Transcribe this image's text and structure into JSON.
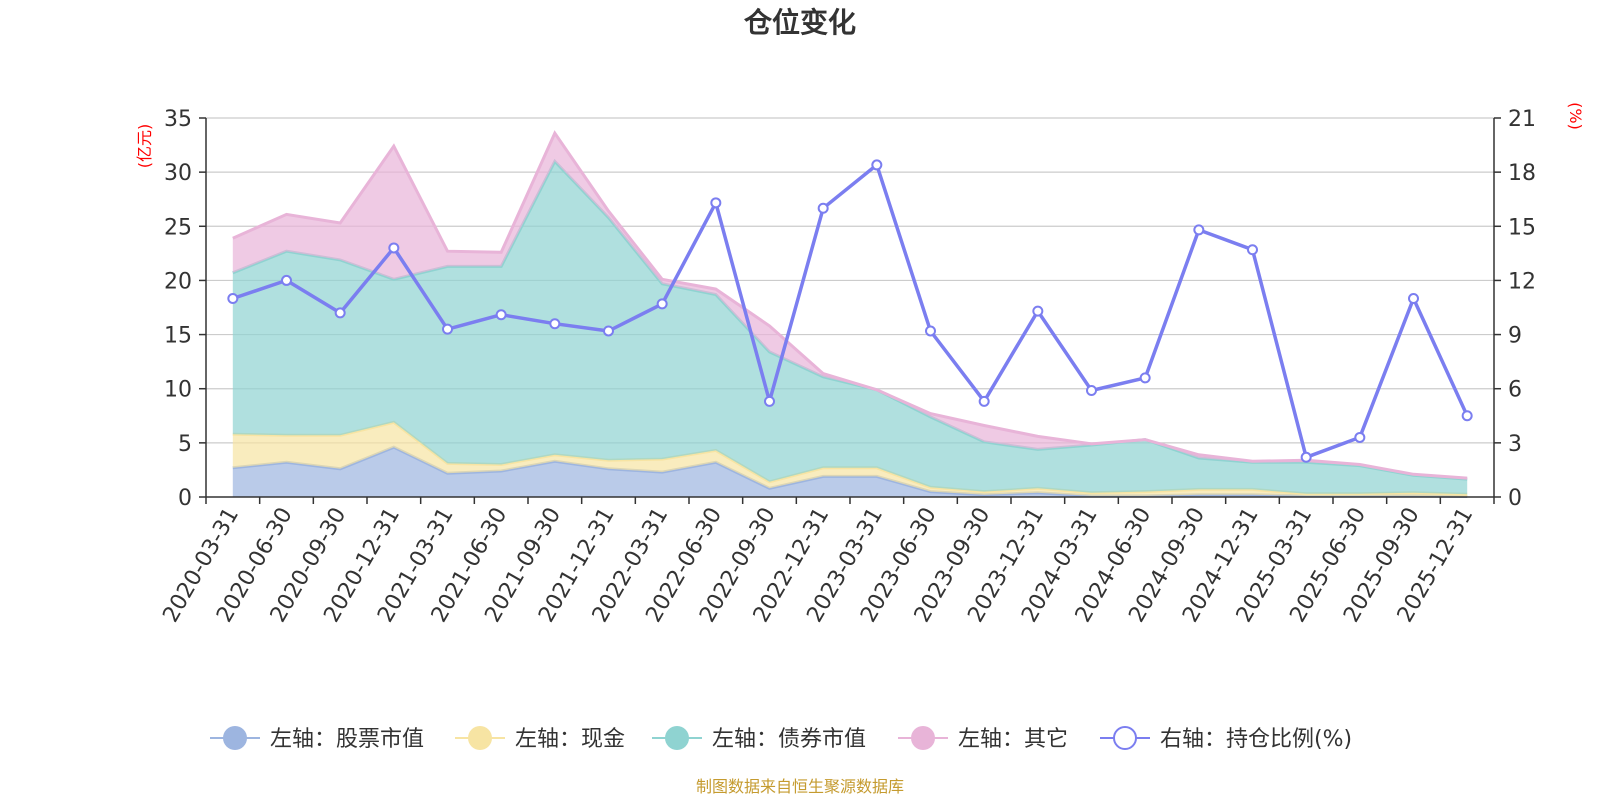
{
  "chart_data": {
    "type": "area",
    "title": "仓位变化",
    "left_axis_unit": "(亿元)",
    "right_axis_unit": "(%)",
    "left_ylim": [
      0,
      35
    ],
    "left_yticks": [
      "0",
      "5",
      "10",
      "15",
      "20",
      "25",
      "30",
      "35"
    ],
    "right_ylim": [
      0,
      21
    ],
    "right_yticks": [
      "0",
      "3",
      "6",
      "9",
      "12",
      "15",
      "18",
      "21"
    ],
    "grid": true,
    "legend_position": "bottom",
    "categories": [
      "2020-03-31",
      "2020-06-30",
      "2020-09-30",
      "2020-12-31",
      "2021-03-31",
      "2021-06-30",
      "2021-09-30",
      "2021-12-31",
      "2022-03-31",
      "2022-06-30",
      "2022-09-30",
      "2022-12-31",
      "2023-03-31",
      "2023-06-30",
      "2023-09-30",
      "2023-12-31",
      "2024-03-31",
      "2024-06-30",
      "2024-09-30",
      "2024-12-31",
      "2025-03-31",
      "2025-06-30",
      "2025-09-30",
      "2025-12-31"
    ],
    "series": [
      {
        "name": "左轴：股票市值",
        "axis": "left",
        "stacked": true,
        "color": "#9db5e0",
        "values": [
          2.7,
          3.2,
          2.6,
          4.6,
          2.2,
          2.4,
          3.3,
          2.6,
          2.3,
          3.2,
          0.8,
          1.9,
          1.9,
          0.5,
          0.2,
          0.4,
          0.1,
          0.1,
          0.2,
          0.2,
          0.1,
          0.1,
          0.1,
          0.05
        ]
      },
      {
        "name": "左轴：现金",
        "axis": "left",
        "stacked": true,
        "color": "#f7e4a3",
        "values": [
          3.1,
          2.5,
          3.1,
          2.3,
          0.9,
          0.6,
          0.6,
          0.8,
          1.2,
          1.1,
          0.6,
          0.8,
          0.8,
          0.4,
          0.3,
          0.4,
          0.3,
          0.4,
          0.5,
          0.5,
          0.2,
          0.2,
          0.3,
          0.2
        ]
      },
      {
        "name": "左轴：债券市值",
        "axis": "left",
        "stacked": true,
        "color": "#8fd3d1",
        "values": [
          14.9,
          17.0,
          16.2,
          13.2,
          18.2,
          18.3,
          27.1,
          22.4,
          16.2,
          14.4,
          12.0,
          8.4,
          7.2,
          6.5,
          4.6,
          3.6,
          4.4,
          4.8,
          2.9,
          2.5,
          2.9,
          2.6,
          1.6,
          1.4
        ]
      },
      {
        "name": "左轴：其它",
        "axis": "left",
        "stacked": true,
        "color": "#e8b4d8",
        "values": [
          3.2,
          3.4,
          3.4,
          12.3,
          1.4,
          1.3,
          2.6,
          0.6,
          0.4,
          0.5,
          2.4,
          0.3,
          0.0,
          0.3,
          1.5,
          1.2,
          0.1,
          0.0,
          0.3,
          0.1,
          0.2,
          0.1,
          0.1,
          0.1
        ]
      },
      {
        "name": "右轴：持仓比例(%)",
        "axis": "right",
        "type": "line",
        "color": "#7b7ef0",
        "values": [
          11.0,
          12.0,
          10.2,
          13.8,
          9.3,
          10.1,
          9.6,
          9.2,
          10.7,
          16.3,
          5.3,
          16.0,
          18.4,
          9.2,
          5.3,
          10.3,
          5.9,
          6.6,
          14.8,
          13.7,
          2.2,
          3.3,
          11.0,
          4.5
        ]
      }
    ],
    "source_note": "制图数据来自恒生聚源数据库"
  }
}
